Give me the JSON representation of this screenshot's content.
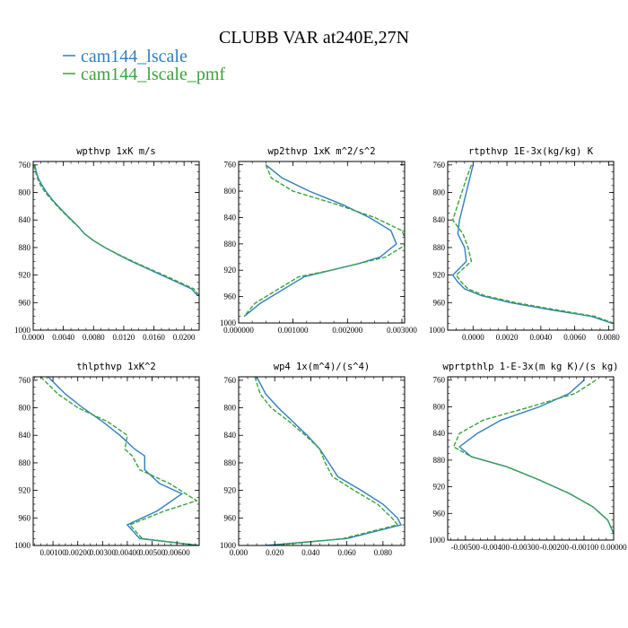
{
  "title": "CLUBB VAR at240E,27N",
  "legend": [
    {
      "name": "cam144_lscale",
      "color": "#2f7fc1"
    },
    {
      "name": "cam144_lscale_pmf",
      "color": "#3aa33a"
    }
  ],
  "chart_data": [
    {
      "type": "line",
      "title": "wpthvp   1xK m/s",
      "xlim": [
        0,
        0.022
      ],
      "ylim": [
        1000,
        755
      ],
      "xticks": [
        "0.0000",
        "0.0040",
        "0.0080",
        "0.0120",
        "0.0160",
        "0.0200"
      ],
      "xtick_values": [
        0,
        0.004,
        0.008,
        0.012,
        0.016,
        0.02
      ],
      "yticks": [
        "760",
        "800",
        "840",
        "880",
        "920",
        "960",
        "1000"
      ],
      "ytick_values": [
        760,
        800,
        840,
        880,
        920,
        960,
        1000
      ],
      "series": [
        {
          "name": "cam144_lscale",
          "x": [
            0.0002,
            0.0004,
            0.0007,
            0.0012,
            0.0018,
            0.0025,
            0.0033,
            0.0042,
            0.0051,
            0.006,
            0.0068,
            0.008,
            0.0095,
            0.0112,
            0.013,
            0.015,
            0.017,
            0.019,
            0.021,
            0.0218
          ],
          "y": [
            760,
            770,
            780,
            790,
            800,
            810,
            820,
            830,
            840,
            850,
            860,
            870,
            880,
            890,
            900,
            910,
            920,
            930,
            940,
            950
          ]
        },
        {
          "name": "cam144_lscale_pmf",
          "x": [
            0.0001,
            0.0003,
            0.0006,
            0.001,
            0.0016,
            0.0024,
            0.0032,
            0.0041,
            0.005,
            0.006,
            0.0068,
            0.008,
            0.0095,
            0.0113,
            0.0132,
            0.0152,
            0.0173,
            0.0193,
            0.0213,
            0.022
          ],
          "y": [
            760,
            770,
            780,
            790,
            800,
            810,
            820,
            830,
            840,
            850,
            860,
            870,
            880,
            890,
            900,
            910,
            920,
            930,
            940,
            950
          ]
        }
      ]
    },
    {
      "type": "line",
      "title": "wp2thvp   1xK m^2/s^2",
      "xlim": [
        0,
        0.00305
      ],
      "ylim": [
        1000,
        755
      ],
      "xticks": [
        "0.000000",
        "0.001000",
        "0.002000",
        "0.003000"
      ],
      "xtick_values": [
        0,
        0.001,
        0.002,
        0.003
      ],
      "yticks": [
        "760",
        "800",
        "840",
        "880",
        "920",
        "960",
        "1000"
      ],
      "ytick_values": [
        760,
        800,
        840,
        880,
        920,
        960,
        1000
      ],
      "series": [
        {
          "name": "cam144_lscale",
          "x": [
            0.0005,
            0.0008,
            0.0013,
            0.0019,
            0.0024,
            0.0028,
            0.0029,
            0.0026,
            0.0022,
            0.0017,
            0.0012,
            0.0008,
            0.0004,
            0.0001
          ],
          "y": [
            760,
            780,
            800,
            820,
            840,
            860,
            880,
            900,
            910,
            920,
            930,
            950,
            970,
            990
          ]
        },
        {
          "name": "cam144_lscale_pmf",
          "x": [
            0.0005,
            0.0006,
            0.001,
            0.0018,
            0.0025,
            0.003,
            0.0031,
            0.0027,
            0.0022,
            0.0017,
            0.0011,
            0.0007,
            0.0003,
            0.0001
          ],
          "y": [
            760,
            780,
            800,
            820,
            840,
            860,
            880,
            900,
            910,
            920,
            930,
            950,
            970,
            990
          ]
        }
      ]
    },
    {
      "type": "line",
      "title": "rtpthvp   1E-3x(kg/kg) K",
      "xlim": [
        -0.0015,
        0.0083
      ],
      "ylim": [
        1000,
        755
      ],
      "xticks": [
        "0.0000",
        "0.0020",
        "0.0040",
        "0.0060",
        "0.0080"
      ],
      "xtick_values": [
        0,
        0.002,
        0.004,
        0.006,
        0.008
      ],
      "yticks": [
        "760",
        "800",
        "840",
        "880",
        "920",
        "960",
        "1000"
      ],
      "ytick_values": [
        760,
        800,
        840,
        880,
        920,
        960,
        1000
      ],
      "series": [
        {
          "name": "cam144_lscale",
          "x": [
            0.0,
            -0.0002,
            -0.0005,
            -0.0008,
            -0.0009,
            -0.0005,
            -0.0004,
            -0.0012,
            -0.0009,
            -0.0005,
            0.0005,
            0.0022,
            0.0045,
            0.007,
            0.0082
          ],
          "y": [
            760,
            780,
            810,
            840,
            860,
            880,
            900,
            920,
            930,
            940,
            950,
            960,
            970,
            980,
            990
          ]
        },
        {
          "name": "cam144_lscale_pmf",
          "x": [
            -0.0001,
            -0.0004,
            -0.0008,
            -0.0012,
            -0.0006,
            -0.0003,
            -0.0001,
            -0.001,
            -0.0007,
            -0.0003,
            0.0007,
            0.0025,
            0.0048,
            0.0072,
            0.0083
          ],
          "y": [
            760,
            780,
            810,
            840,
            860,
            880,
            900,
            920,
            930,
            940,
            950,
            960,
            970,
            980,
            990
          ]
        }
      ]
    },
    {
      "type": "line",
      "title": "thlpthvp   1xK^2",
      "xlim": [
        0.0002,
        0.0069
      ],
      "ylim": [
        1000,
        755
      ],
      "xticks": [
        "0.00100",
        "0.00200",
        "0.00300",
        "0.00400",
        "0.00500",
        "0.00600"
      ],
      "xtick_values": [
        0.001,
        0.002,
        0.003,
        0.004,
        0.005,
        0.006
      ],
      "yticks": [
        "760",
        "800",
        "840",
        "880",
        "920",
        "960",
        "1000"
      ],
      "ytick_values": [
        760,
        800,
        840,
        880,
        920,
        960,
        1000
      ],
      "series": [
        {
          "name": "cam144_lscale",
          "x": [
            0.0008,
            0.0015,
            0.0022,
            0.003,
            0.0037,
            0.0043,
            0.0047,
            0.0047,
            0.0053,
            0.0062,
            0.0052,
            0.004,
            0.0045,
            0.0069
          ],
          "y": [
            755,
            780,
            800,
            820,
            840,
            860,
            870,
            890,
            910,
            925,
            950,
            970,
            990,
            1000
          ]
        },
        {
          "name": "cam144_lscale_pmf",
          "x": [
            0.0005,
            0.0012,
            0.002,
            0.0032,
            0.004,
            0.0039,
            0.0042,
            0.0045,
            0.0057,
            0.0068,
            0.0055,
            0.0041,
            0.0046,
            0.0069
          ],
          "y": [
            755,
            780,
            800,
            820,
            840,
            860,
            870,
            890,
            910,
            935,
            950,
            970,
            990,
            1000
          ]
        }
      ]
    },
    {
      "type": "line",
      "title": "wp4   1x(m^4)/(s^4)",
      "xlim": [
        0,
        0.092
      ],
      "ylim": [
        1000,
        755
      ],
      "xticks": [
        "0.000",
        "0.020",
        "0.040",
        "0.060",
        "0.080"
      ],
      "xtick_values": [
        0,
        0.02,
        0.04,
        0.06,
        0.08
      ],
      "yticks": [
        "760",
        "800",
        "840",
        "880",
        "920",
        "960",
        "1000"
      ],
      "ytick_values": [
        760,
        800,
        840,
        880,
        920,
        960,
        1000
      ],
      "series": [
        {
          "name": "cam144_lscale",
          "x": [
            0.01,
            0.015,
            0.022,
            0.03,
            0.038,
            0.045,
            0.05,
            0.055,
            0.068,
            0.08,
            0.088,
            0.09,
            0.06,
            0.015
          ],
          "y": [
            755,
            780,
            800,
            820,
            840,
            860,
            880,
            900,
            920,
            940,
            960,
            970,
            990,
            1000
          ]
        },
        {
          "name": "cam144_lscale_pmf",
          "x": [
            0.009,
            0.012,
            0.018,
            0.028,
            0.037,
            0.045,
            0.048,
            0.052,
            0.064,
            0.077,
            0.085,
            0.088,
            0.058,
            0.02
          ],
          "y": [
            755,
            780,
            800,
            820,
            840,
            860,
            880,
            900,
            920,
            940,
            960,
            970,
            990,
            1000
          ]
        }
      ]
    },
    {
      "type": "line",
      "title": "wprtpthlp   1-E-3x(m kg K)/(s kg)",
      "xlim": [
        -0.0056,
        0.0
      ],
      "ylim": [
        1000,
        755
      ],
      "xticks": [
        "-0.00500",
        "-0.00400",
        "-0.00300",
        "-0.00200",
        "-0.00100",
        "0.00000"
      ],
      "xtick_values": [
        -0.005,
        -0.004,
        -0.003,
        -0.002,
        -0.001,
        0.0
      ],
      "yticks": [
        "760",
        "800",
        "840",
        "880",
        "920",
        "960",
        "1000"
      ],
      "ytick_values": [
        760,
        800,
        840,
        880,
        920,
        960,
        1000
      ],
      "series": [
        {
          "name": "cam144_lscale",
          "x": [
            -0.001,
            -0.0015,
            -0.0025,
            -0.0038,
            -0.0046,
            -0.0052,
            -0.0048,
            -0.0036,
            -0.0025,
            -0.0015,
            -0.0007,
            -0.0002,
            0.0
          ],
          "y": [
            760,
            780,
            800,
            820,
            840,
            860,
            875,
            890,
            910,
            930,
            950,
            970,
            990
          ]
        },
        {
          "name": "cam144_lscale_pmf",
          "x": [
            -0.0006,
            -0.0013,
            -0.0028,
            -0.0044,
            -0.0052,
            -0.0054,
            -0.0048,
            -0.0036,
            -0.0025,
            -0.0015,
            -0.0007,
            -0.0002,
            0.0
          ],
          "y": [
            760,
            780,
            800,
            820,
            840,
            860,
            875,
            890,
            910,
            930,
            950,
            970,
            990
          ]
        }
      ]
    }
  ]
}
